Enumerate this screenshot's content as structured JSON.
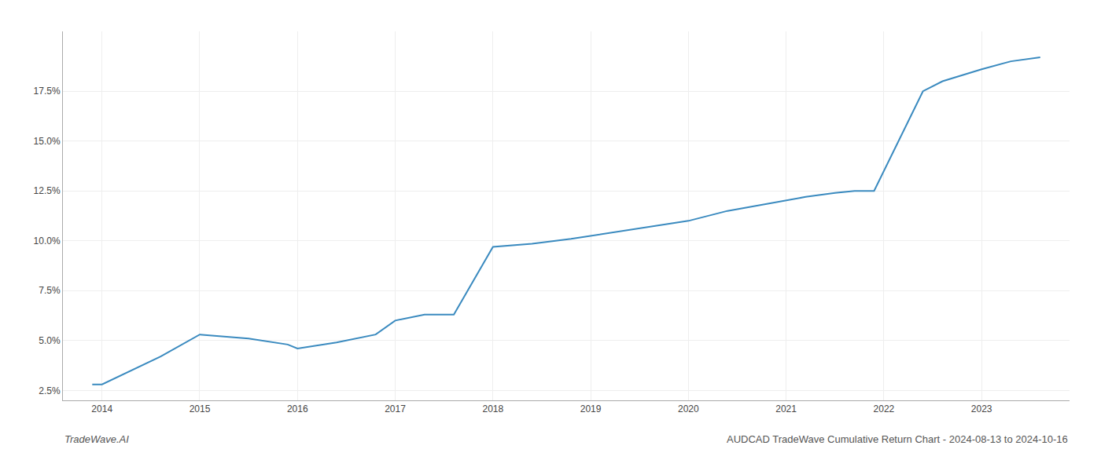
{
  "chart_data": {
    "type": "line",
    "x": [
      2013.9,
      2014.0,
      2014.6,
      2015.0,
      2015.5,
      2015.9,
      2016.0,
      2016.4,
      2016.8,
      2017.0,
      2017.3,
      2017.6,
      2018.0,
      2018.4,
      2018.8,
      2019.2,
      2019.6,
      2020.0,
      2020.4,
      2020.8,
      2021.0,
      2021.2,
      2021.5,
      2021.7,
      2021.9,
      2022.1,
      2022.4,
      2022.6,
      2022.8,
      2023.0,
      2023.3,
      2023.6
    ],
    "values": [
      2.8,
      2.8,
      4.2,
      5.3,
      5.1,
      4.8,
      4.6,
      4.9,
      5.3,
      6.0,
      6.3,
      6.3,
      9.7,
      9.85,
      10.1,
      10.4,
      10.7,
      11.0,
      11.5,
      11.85,
      12.0,
      12.2,
      12.4,
      12.5,
      12.5,
      14.5,
      17.5,
      18.0,
      18.3,
      18.6,
      19.0,
      19.2
    ],
    "color": "#3a8abf",
    "xlim": [
      2013.6,
      2023.9
    ],
    "ylim": [
      2.0,
      20.5
    ],
    "xticks": [
      2014,
      2015,
      2016,
      2017,
      2018,
      2019,
      2020,
      2021,
      2022,
      2023
    ],
    "yticks": [
      {
        "value": 2.5,
        "label": "2.5%"
      },
      {
        "value": 5.0,
        "label": "5.0%"
      },
      {
        "value": 7.5,
        "label": "7.5%"
      },
      {
        "value": 10.0,
        "label": "10.0%"
      },
      {
        "value": 12.5,
        "label": "12.5%"
      },
      {
        "value": 15.0,
        "label": "15.0%"
      },
      {
        "value": 17.5,
        "label": "17.5%"
      }
    ],
    "grid": true,
    "annotations": [
      "TradeWave.AI",
      "AUDCAD TradeWave Cumulative Return Chart - 2024-08-13 to 2024-10-16"
    ]
  }
}
